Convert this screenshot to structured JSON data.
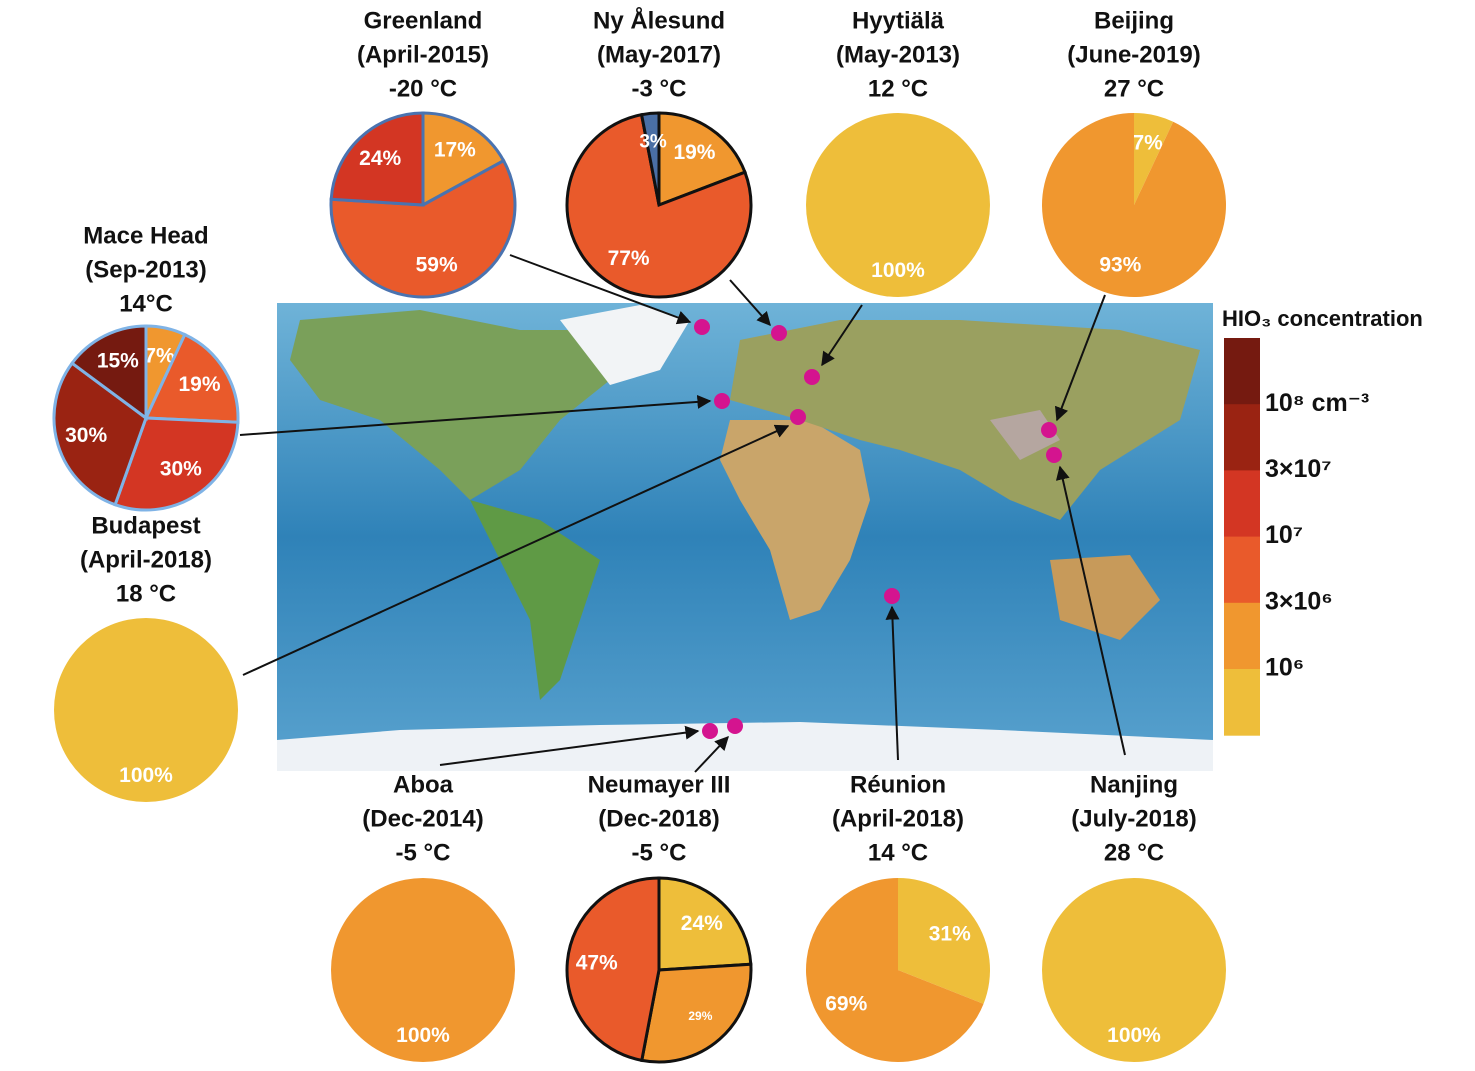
{
  "chart_data": [
    {
      "type": "pie",
      "title": "Greenland",
      "subtitle": "(April-2015)",
      "temperature": "-20 °C",
      "edgecolor": "#4a73b0",
      "categories": [
        null,
        null,
        null
      ],
      "values": [
        17,
        59,
        24
      ],
      "value_labels": [
        "17%",
        "59%",
        "24%"
      ],
      "colors": [
        "#f0972f",
        "#e95a2b",
        "#d33623"
      ]
    },
    {
      "type": "pie",
      "title": "Ny Ålesund",
      "subtitle": "(May-2017)",
      "temperature": "-3 °C",
      "edgecolor": "#111111",
      "categories": [
        null,
        null,
        null
      ],
      "values": [
        19,
        77,
        3
      ],
      "value_labels": [
        "19%",
        "77%",
        "3%"
      ],
      "colors": [
        "#f0972f",
        "#e95a2b",
        "#4a6fa5"
      ]
    },
    {
      "type": "pie",
      "title": "Hyytiälä",
      "subtitle": "(May-2013)",
      "temperature": "12 °C",
      "categories": [
        null
      ],
      "values": [
        100
      ],
      "value_labels": [
        "100%"
      ],
      "colors": [
        "#eebe3a"
      ]
    },
    {
      "type": "pie",
      "title": "Beijing",
      "subtitle": "(June-2019)",
      "temperature": "27 °C",
      "categories": [
        null,
        null
      ],
      "values": [
        7,
        93
      ],
      "value_labels": [
        "7%",
        "93%"
      ],
      "colors": [
        "#eebe3a",
        "#f0972f"
      ]
    },
    {
      "type": "pie",
      "title": "Mace Head",
      "subtitle": "(Sep-2013)",
      "temperature": "14°C",
      "edgecolor": "#7fb3e6",
      "categories": [
        null,
        null,
        null,
        null,
        null
      ],
      "values": [
        7,
        19,
        30,
        30,
        15
      ],
      "value_labels": [
        "7%",
        "19%",
        "30%",
        "30%",
        "15%"
      ],
      "colors": [
        "#f0972f",
        "#e95a2b",
        "#d33623",
        "#9a2312",
        "#751a10"
      ]
    },
    {
      "type": "pie",
      "title": "Budapest",
      "subtitle": "(April-2018)",
      "temperature": "18 °C",
      "categories": [
        null
      ],
      "values": [
        100
      ],
      "value_labels": [
        "100%"
      ],
      "colors": [
        "#eebe3a"
      ]
    },
    {
      "type": "pie",
      "title": "Aboa",
      "subtitle": "(Dec-2014)",
      "temperature": "-5 °C",
      "categories": [
        null
      ],
      "values": [
        100
      ],
      "value_labels": [
        "100%"
      ],
      "colors": [
        "#f0972f"
      ]
    },
    {
      "type": "pie",
      "title": "Neumayer III",
      "subtitle": "(Dec-2018)",
      "temperature": "-5 °C",
      "edgecolor": "#111111",
      "categories": [
        null,
        null,
        null
      ],
      "values": [
        24,
        29,
        47
      ],
      "value_labels": [
        "24%",
        "29%",
        "47%"
      ],
      "colors": [
        "#eebe3a",
        "#f0972f",
        "#e95a2b"
      ]
    },
    {
      "type": "pie",
      "title": "Réunion",
      "subtitle": "(April-2018)",
      "temperature": "14 °C",
      "categories": [
        null,
        null
      ],
      "values": [
        31,
        69
      ],
      "value_labels": [
        "31%",
        "69%"
      ],
      "colors": [
        "#eebe3a",
        "#f0972f"
      ]
    },
    {
      "type": "pie",
      "title": "Nanjing",
      "subtitle": "(July-2018)",
      "temperature": "28 °C",
      "categories": [
        null
      ],
      "values": [
        100
      ],
      "value_labels": [
        "100%"
      ],
      "colors": [
        "#eebe3a"
      ]
    }
  ],
  "colorbar": {
    "title": "HIO₃ concentration",
    "colors": [
      "#751a10",
      "#9a2312",
      "#d33623",
      "#e95a2b",
      "#f0972f",
      "#eebe3a"
    ],
    "labels": [
      "10⁸ cm⁻³",
      "3×10⁷",
      "10⁷",
      "3×10⁶",
      "10⁶"
    ]
  }
}
